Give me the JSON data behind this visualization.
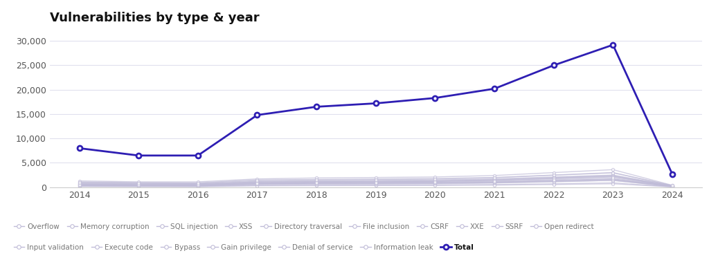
{
  "title": "Vulnerabilities by type & year",
  "years": [
    2014,
    2015,
    2016,
    2017,
    2018,
    2019,
    2020,
    2021,
    2022,
    2023,
    2024
  ],
  "total_values": [
    8000,
    6500,
    6500,
    14800,
    16500,
    17200,
    18300,
    20200,
    25000,
    29200,
    2700
  ],
  "total_color": "#2e1eb3",
  "other_line_color": "#c0bcd8",
  "ylim": [
    0,
    32000
  ],
  "yticks": [
    0,
    5000,
    10000,
    15000,
    20000,
    25000,
    30000
  ],
  "background_color": "#ffffff",
  "grid_color": "#e0e0ee",
  "title_fontsize": 13,
  "legend_items_row1": [
    "Overflow",
    "Memory corruption",
    "SQL injection",
    "XSS",
    "Directory traversal",
    "File inclusion",
    "CSRF",
    "XXE",
    "SSRF",
    "Open redirect"
  ],
  "legend_items_row2": [
    "Input validation",
    "Execute code",
    "Bypass",
    "Gain privilege",
    "Denial of service",
    "Information leak"
  ],
  "legend_total": "Total",
  "other_series": [
    [
      600,
      500,
      500,
      900,
      1000,
      1100,
      1200,
      1400,
      1800,
      2200,
      200
    ],
    [
      900,
      800,
      700,
      1200,
      1300,
      1400,
      1500,
      1700,
      2100,
      2500,
      300
    ],
    [
      400,
      350,
      300,
      700,
      800,
      850,
      900,
      1000,
      1300,
      1600,
      150
    ],
    [
      700,
      600,
      600,
      1100,
      1200,
      1250,
      1350,
      1600,
      2000,
      2400,
      250
    ],
    [
      300,
      250,
      250,
      500,
      600,
      650,
      700,
      850,
      1100,
      1400,
      120
    ],
    [
      1100,
      950,
      900,
      1500,
      1600,
      1700,
      1800,
      2000,
      2500,
      3000,
      350
    ],
    [
      200,
      180,
      160,
      350,
      400,
      430,
      460,
      550,
      700,
      900,
      80
    ],
    [
      500,
      420,
      410,
      750,
      850,
      900,
      950,
      1100,
      1400,
      1700,
      180
    ],
    [
      150,
      130,
      120,
      280,
      320,
      340,
      360,
      430,
      550,
      700,
      60
    ],
    [
      800,
      700,
      680,
      1050,
      1150,
      1200,
      1280,
      1500,
      1900,
      2300,
      220
    ],
    [
      1300,
      1100,
      1100,
      1700,
      1900,
      2000,
      2100,
      2400,
      3000,
      3600,
      400
    ],
    [
      350,
      300,
      290,
      600,
      680,
      720,
      760,
      900,
      1150,
      1400,
      130
    ],
    [
      650,
      560,
      540,
      950,
      1050,
      1100,
      1170,
      1380,
      1750,
      2100,
      230
    ],
    [
      450,
      390,
      380,
      700,
      790,
      840,
      890,
      1050,
      1330,
      1600,
      170
    ],
    [
      550,
      480,
      460,
      830,
      930,
      980,
      1040,
      1230,
      1560,
      1880,
      200
    ],
    [
      1000,
      870,
      840,
      1350,
      1480,
      1560,
      1660,
      1950,
      2450,
      2950,
      330
    ]
  ]
}
